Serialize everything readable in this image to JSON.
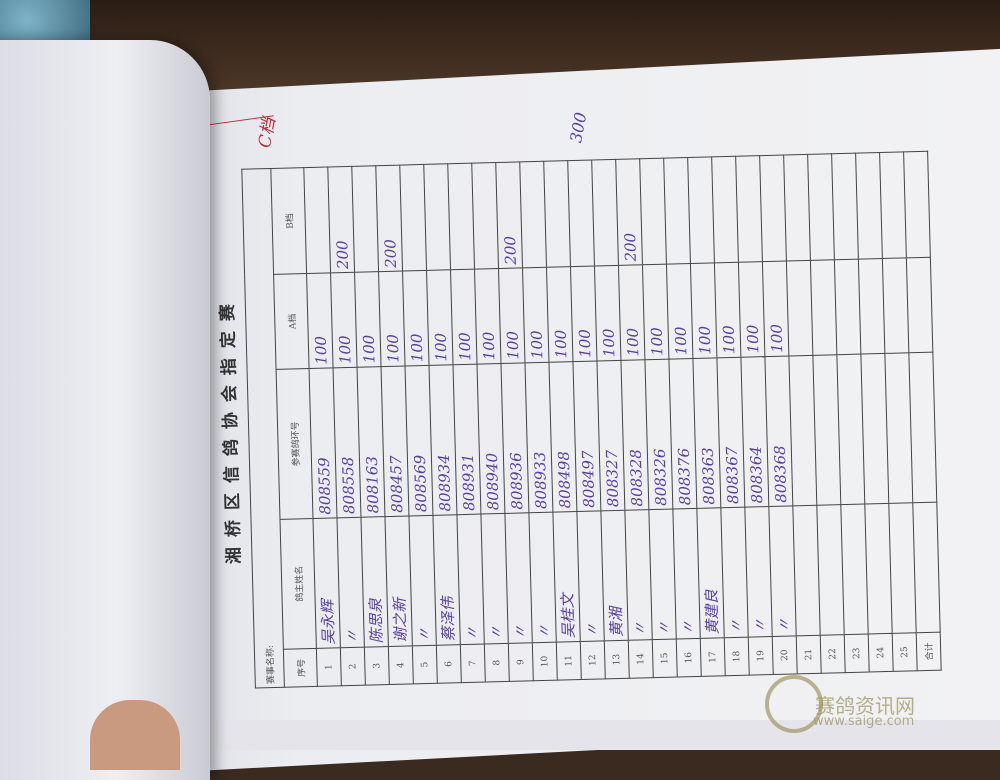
{
  "form": {
    "title": "湘桥区信鸽协会指定赛",
    "event_label": "赛事名称:",
    "headers": {
      "no": "序号",
      "owner": "鸽主姓名",
      "ring": "参赛鸽环号",
      "a": "A档",
      "b": "B档"
    },
    "rows": [
      {
        "no": "1",
        "owner": "吴永辉",
        "ring": "808559",
        "a": "100",
        "b": ""
      },
      {
        "no": "2",
        "owner": "〃",
        "ring": "808558",
        "a": "100",
        "b": "200"
      },
      {
        "no": "3",
        "owner": "陈思泉",
        "ring": "808163",
        "a": "100",
        "b": ""
      },
      {
        "no": "4",
        "owner": "谢之新",
        "ring": "808457",
        "a": "100",
        "b": "200"
      },
      {
        "no": "5",
        "owner": "〃",
        "ring": "808569",
        "a": "100",
        "b": ""
      },
      {
        "no": "6",
        "owner": "蔡泽伟",
        "ring": "808934",
        "a": "100",
        "b": ""
      },
      {
        "no": "7",
        "owner": "〃",
        "ring": "808931",
        "a": "100",
        "b": ""
      },
      {
        "no": "8",
        "owner": "〃",
        "ring": "808940",
        "a": "100",
        "b": ""
      },
      {
        "no": "9",
        "owner": "〃",
        "ring": "808936",
        "a": "100",
        "b": "200"
      },
      {
        "no": "10",
        "owner": "〃",
        "ring": "808933",
        "a": "100",
        "b": ""
      },
      {
        "no": "11",
        "owner": "吴桂文",
        "ring": "808498",
        "a": "100",
        "b": ""
      },
      {
        "no": "12",
        "owner": "〃",
        "ring": "808497",
        "a": "100",
        "b": ""
      },
      {
        "no": "13",
        "owner": "黄湘",
        "ring": "808327",
        "a": "100",
        "b": ""
      },
      {
        "no": "14",
        "owner": "〃",
        "ring": "808328",
        "a": "100",
        "b": "200"
      },
      {
        "no": "15",
        "owner": "〃",
        "ring": "808326",
        "a": "100",
        "b": ""
      },
      {
        "no": "16",
        "owner": "〃",
        "ring": "808376",
        "a": "100",
        "b": ""
      },
      {
        "no": "17",
        "owner": "黄建良",
        "ring": "808363",
        "a": "100",
        "b": ""
      },
      {
        "no": "18",
        "owner": "〃",
        "ring": "808367",
        "a": "100",
        "b": ""
      },
      {
        "no": "19",
        "owner": "〃",
        "ring": "808364",
        "a": "100",
        "b": ""
      },
      {
        "no": "20",
        "owner": "〃",
        "ring": "808368",
        "a": "100",
        "b": ""
      },
      {
        "no": "21",
        "owner": "",
        "ring": "",
        "a": "",
        "b": ""
      },
      {
        "no": "22",
        "owner": "",
        "ring": "",
        "a": "",
        "b": ""
      },
      {
        "no": "23",
        "owner": "",
        "ring": "",
        "a": "",
        "b": ""
      },
      {
        "no": "24",
        "owner": "",
        "ring": "",
        "a": "",
        "b": ""
      },
      {
        "no": "25",
        "owner": "",
        "ring": "",
        "a": "",
        "b": ""
      }
    ],
    "total_label": "合计"
  },
  "annotations": {
    "red_note": "C档",
    "extra_amount": "300"
  },
  "watermark": {
    "name": "赛鸽资讯网",
    "url": "www.saige.com"
  },
  "colors": {
    "ink": "#5a3fa0",
    "red_ink": "#c0303a"
  }
}
